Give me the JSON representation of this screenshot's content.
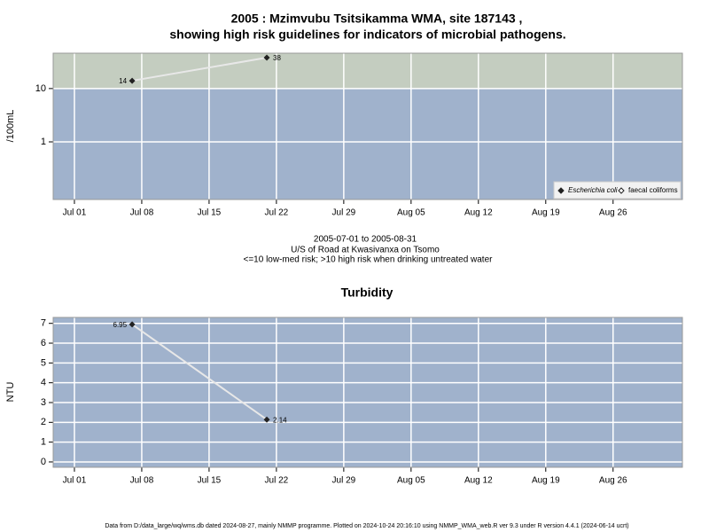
{
  "chart_data": [
    {
      "type": "line",
      "title": [
        "2005 : Mzimvubu Tsitsikamma WMA, site 187143 ,",
        "showing high risk guidelines for indicators of microbial pathogens."
      ],
      "ylabel": "/100mL",
      "log_scale": true,
      "threshold": 10,
      "high_color": "#c4cdc0",
      "low_color": "#a0b2cc",
      "x": [
        "2005-07-07",
        "2005-07-21"
      ],
      "series": [
        {
          "name": "Escherichia coli",
          "color": "#222222",
          "values": [
            14,
            38
          ]
        },
        {
          "name": "faecal coliforms",
          "color": "#222222",
          "values": [
            null,
            null
          ]
        }
      ],
      "xlim": [
        "2005-06-28T19:00",
        "2005-09-02T05:00"
      ],
      "xticks": [
        {
          "value": "2005-07-01",
          "label": "Jul 01"
        },
        {
          "value": "2005-07-08",
          "label": "Jul 08"
        },
        {
          "value": "2005-07-15",
          "label": "Jul 15"
        },
        {
          "value": "2005-07-22",
          "label": "Jul 22"
        },
        {
          "value": "2005-07-29",
          "label": "Jul 29"
        },
        {
          "value": "2005-08-05",
          "label": "Aug 05"
        },
        {
          "value": "2005-08-12",
          "label": "Aug 12"
        },
        {
          "value": "2005-08-19",
          "label": "Aug 19"
        },
        {
          "value": "2005-08-26",
          "label": "Aug 26"
        }
      ],
      "ylim": [
        0.083,
        46
      ],
      "yticks": [
        1,
        10
      ],
      "grid": true,
      "legend": "bottom-right",
      "notes": [
        "2005-07-01 to 2005-08-31",
        "U/S of Road at Kwasivanxa on Tsomo",
        "<=10 low-med risk; >10 high risk when drinking untreated water"
      ]
    },
    {
      "type": "line",
      "title": "Turbidity",
      "ylabel": "NTU",
      "background": "#a0b2cc",
      "x": [
        "2005-07-07",
        "2005-07-21"
      ],
      "series": [
        {
          "name": "Turbidity",
          "color": "#222222",
          "values": [
            6.95,
            2.14
          ]
        }
      ],
      "xlim": [
        "2005-06-28T19:00",
        "2005-09-02T05:00"
      ],
      "xticks": [
        {
          "value": "2005-07-01",
          "label": "Jul 01"
        },
        {
          "value": "2005-07-08",
          "label": "Jul 08"
        },
        {
          "value": "2005-07-15",
          "label": "Jul 15"
        },
        {
          "value": "2005-07-22",
          "label": "Jul 22"
        },
        {
          "value": "2005-07-29",
          "label": "Jul 29"
        },
        {
          "value": "2005-08-05",
          "label": "Aug 05"
        },
        {
          "value": "2005-08-12",
          "label": "Aug 12"
        },
        {
          "value": "2005-08-19",
          "label": "Aug 19"
        },
        {
          "value": "2005-08-26",
          "label": "Aug 26"
        }
      ],
      "ylim": [
        -0.27,
        7.3
      ],
      "yticks": [
        0,
        1,
        2,
        3,
        4,
        5,
        6,
        7
      ],
      "grid": true
    }
  ],
  "footer": "Data from D:/data_large/wq/wms.db dated 2024-08-27, mainly NMMP programme. Plotted on 2024-10-24 20:16:10 using NMMP_WMA_web.R ver 9.3 under R version 4.4.1 (2024-06-14 ucrt)"
}
